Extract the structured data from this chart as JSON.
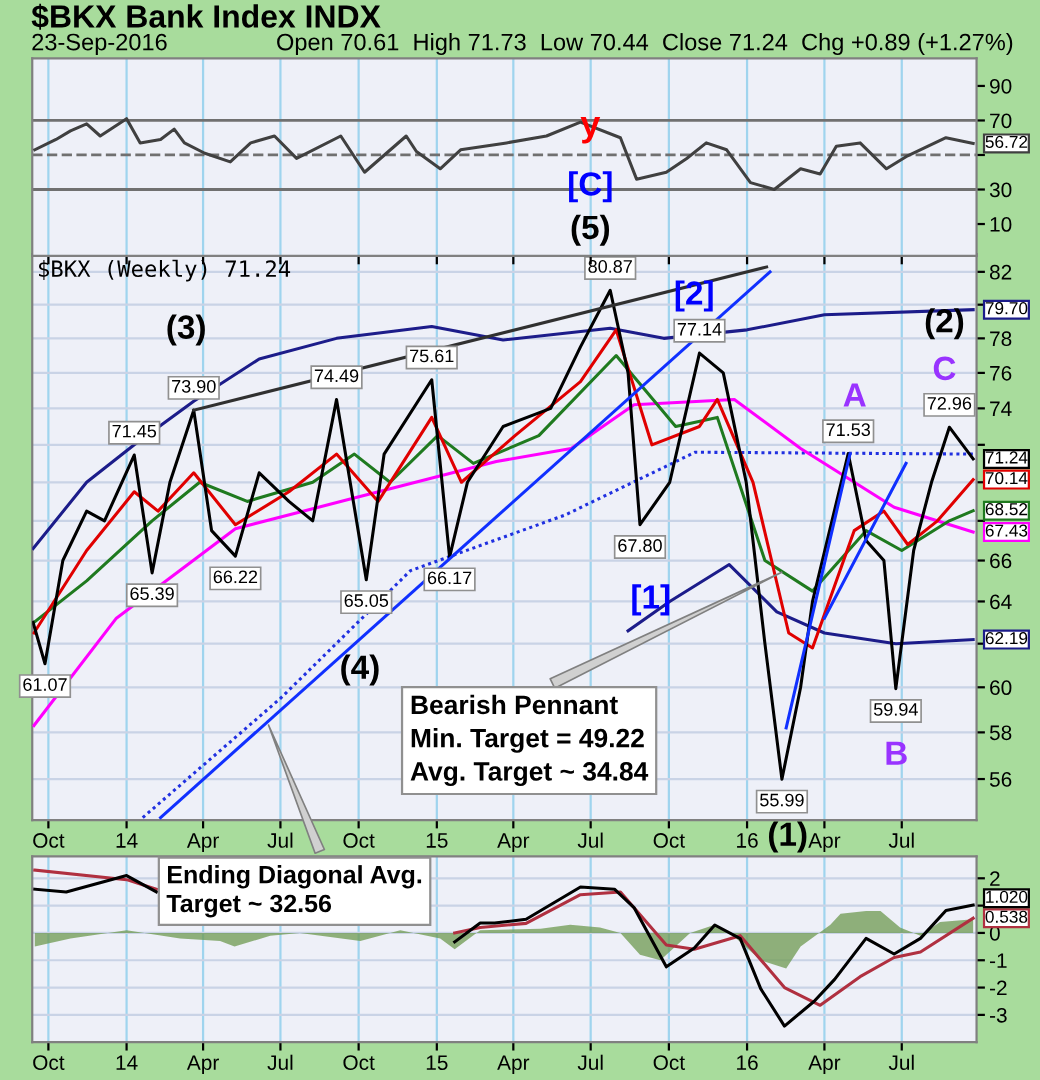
{
  "chart_data": [
    {
      "type": "line",
      "title": "$BKX Bank Index INDX",
      "subtitle": "23-Sep-2016",
      "xlim": [
        "2013-09-12",
        "2016-09-27"
      ],
      "ylim": [
        -8.5,
        106
      ],
      "xticks": [
        {
          "value": "2013-10-01",
          "label": null
        },
        {
          "value": "2014-01-01",
          "label": null
        },
        {
          "value": "2014-04-01",
          "label": null
        },
        {
          "value": "2014-07-01",
          "label": null
        },
        {
          "value": "2014-10-01",
          "label": null
        },
        {
          "value": "2015-01-01",
          "label": null
        },
        {
          "value": "2015-04-01",
          "label": null
        },
        {
          "value": "2015-07-01",
          "label": null
        },
        {
          "value": "2015-10-01",
          "label": null
        },
        {
          "value": "2016-01-01",
          "label": null
        },
        {
          "value": "2016-04-01",
          "label": null
        },
        {
          "value": "2016-07-01",
          "label": null
        }
      ],
      "yticks": [
        10,
        30,
        {
          "value": 50,
          "label": null
        },
        70,
        90
      ],
      "tick_labels": "y",
      "grid": "x",
      "ref_lines": [
        {
          "axis": "y",
          "value": 70,
          "color": "#707070"
        },
        {
          "axis": "y",
          "value": 30,
          "color": "#707070"
        },
        {
          "axis": "y",
          "value": 50,
          "color": "#707070",
          "line_style": "dashed"
        }
      ],
      "series": [
        {
          "color": "#404040",
          "x": [
            "2013-09-15",
            "2013-10-10",
            "2013-10-27",
            "2013-11-15",
            "2013-12-01",
            "2014-01-01",
            "2014-01-17",
            "2014-02-10",
            "2014-02-26",
            "2014-03-10",
            "2014-04-03",
            "2014-05-03",
            "2014-05-27",
            "2014-06-24",
            "2014-07-20",
            "2014-09-10",
            "2014-10-08",
            "2014-11-26",
            "2014-12-08",
            "2015-01-05",
            "2015-01-29",
            "2015-03-24",
            "2015-05-10",
            "2015-06-19",
            "2015-08-05",
            "2015-08-24",
            "2015-09-28",
            "2015-10-22",
            "2015-11-14",
            "2015-12-08",
            "2016-01-05",
            "2016-02-02",
            "2016-03-04",
            "2016-03-27",
            "2016-04-15",
            "2016-05-13",
            "2016-06-13",
            "2016-07-06",
            "2016-08-22",
            "2016-09-23"
          ],
          "values": [
            53,
            59,
            64,
            68,
            61,
            71,
            57,
            59,
            65,
            57,
            51,
            46,
            57,
            61,
            48,
            61,
            40,
            61,
            52,
            42,
            53,
            57,
            61,
            69,
            60,
            36,
            40,
            48,
            57,
            53,
            34,
            30,
            42,
            39,
            55,
            57,
            42,
            49,
            60,
            56.72
          ],
          "value_labels": [
            null,
            null,
            null,
            null,
            null,
            null,
            null,
            null,
            null,
            null,
            null,
            null,
            null,
            null,
            null,
            null,
            null,
            null,
            null,
            null,
            null,
            null,
            null,
            null,
            null,
            null,
            null,
            null,
            null,
            null,
            null,
            null,
            null,
            null,
            null,
            null,
            null,
            null,
            null,
            "56.72"
          ]
        }
      ],
      "annotations": [
        "Open 70.61  High 71.73  Low 70.44  Close 71.24  Chg +0.89 (+1.27%)",
        "y",
        "[C]",
        "(5)"
      ]
    },
    {
      "type": "line",
      "title": "$BKX (Weekly) 71.24",
      "log": "y",
      "xlim": [
        "2013-09-12",
        "2016-09-27"
      ],
      "ylim": [
        54.3,
        83.1
      ],
      "xticks": [
        {
          "value": "2013-10-01",
          "label": "Oct"
        },
        {
          "value": "2014-01-01",
          "label": "14"
        },
        {
          "value": "2014-04-01",
          "label": "Apr"
        },
        {
          "value": "2014-07-01",
          "label": "Jul"
        },
        {
          "value": "2014-10-01",
          "label": "Oct"
        },
        {
          "value": "2015-01-01",
          "label": "15"
        },
        {
          "value": "2015-04-01",
          "label": "Apr"
        },
        {
          "value": "2015-07-01",
          "label": "Jul"
        },
        {
          "value": "2015-10-01",
          "label": "Oct"
        },
        {
          "value": "2016-01-01",
          "label": "16"
        },
        {
          "value": "2016-04-01",
          "label": "Apr"
        },
        {
          "value": "2016-07-01",
          "label": "Jul"
        }
      ],
      "yticks": [
        56,
        58,
        60,
        {
          "value": 62,
          "label": null
        },
        64,
        66,
        {
          "value": 68,
          "label": null
        },
        {
          "value": 70,
          "label": null
        },
        {
          "value": 72,
          "label": null
        },
        74,
        76,
        78,
        {
          "value": 80,
          "label": null
        },
        82
      ],
      "grid": true,
      "series": [
        {
          "color": "#1c1c8a",
          "x": [
            "2013-09-13",
            "2013-11-15",
            "2014-01-10",
            "2014-03-21",
            "2014-06-06",
            "2014-09-05",
            "2014-12-26",
            "2015-03-20",
            "2015-07-24",
            "2015-09-25",
            "2016-01-01",
            "2016-04-01",
            "2016-09-23"
          ],
          "values": [
            66.6,
            70.0,
            72.0,
            74.4,
            76.8,
            78.0,
            78.7,
            77.9,
            78.6,
            78.0,
            78.5,
            79.4,
            79.7
          ],
          "value_labels": [
            null,
            null,
            null,
            null,
            null,
            null,
            null,
            null,
            null,
            null,
            null,
            null,
            "79.70"
          ]
        },
        {
          "color": "#1c1c8a",
          "x": [
            "2015-08-14",
            "2015-10-02",
            "2015-12-11",
            "2016-02-05",
            "2016-04-01",
            "2016-06-24",
            "2016-09-23"
          ],
          "values": [
            62.6,
            64.0,
            65.8,
            63.5,
            62.5,
            62.0,
            62.19
          ],
          "value_labels": [
            null,
            null,
            null,
            null,
            null,
            null,
            "62.19"
          ]
        },
        {
          "color": "#2030e0",
          "line_style": "dotted",
          "x": [
            "2014-01-20",
            "2014-07-01",
            "2014-12-01",
            "2015-06-01",
            "2015-11-01",
            "2016-09-23"
          ],
          "values": [
            54.4,
            59.5,
            65.5,
            68.3,
            71.6,
            71.5
          ]
        },
        {
          "color": "#ff00ff",
          "x": [
            "2013-09-14",
            "2013-12-20",
            "2014-05-09",
            "2014-09-28",
            "2015-03-12",
            "2015-06-08",
            "2015-08-21",
            "2015-12-17",
            "2016-03-04",
            "2016-06-22",
            "2016-09-23"
          ],
          "values": [
            58.3,
            63.2,
            67.6,
            69.2,
            71.1,
            71.8,
            74.2,
            74.5,
            71.8,
            68.7,
            67.43
          ],
          "value_labels": [
            null,
            null,
            null,
            null,
            null,
            null,
            null,
            null,
            null,
            null,
            "67.43"
          ]
        },
        {
          "color": "#1f7a1f",
          "x": [
            "2013-09-14",
            "2013-11-15",
            "2014-01-31",
            "2014-03-28",
            "2014-05-23",
            "2014-08-08",
            "2014-09-26",
            "2014-11-07",
            "2015-01-02",
            "2015-02-13",
            "2015-05-01",
            "2015-07-31",
            "2015-10-09",
            "2015-11-27",
            "2016-01-22",
            "2016-03-18",
            "2016-05-20",
            "2016-07-01",
            "2016-08-26",
            "2016-09-23"
          ],
          "values": [
            63.0,
            65.0,
            68.0,
            70.0,
            69.0,
            70.0,
            71.5,
            70.0,
            72.5,
            71.0,
            72.5,
            77.0,
            73.0,
            73.5,
            66.0,
            64.5,
            67.5,
            66.5,
            68.0,
            68.52
          ],
          "value_labels": [
            null,
            null,
            null,
            null,
            null,
            null,
            null,
            null,
            null,
            null,
            null,
            null,
            null,
            null,
            null,
            null,
            null,
            null,
            null,
            "68.52"
          ]
        },
        {
          "color": "#e00000",
          "x": [
            "2013-09-14",
            "2013-11-15",
            "2014-01-10",
            "2014-02-07",
            "2014-03-21",
            "2014-05-09",
            "2014-07-11",
            "2014-09-05",
            "2014-10-24",
            "2014-12-26",
            "2015-01-30",
            "2015-04-03",
            "2015-06-19",
            "2015-07-31",
            "2015-09-11",
            "2015-11-06",
            "2015-11-27",
            "2016-01-08",
            "2016-02-19",
            "2016-03-18",
            "2016-05-06",
            "2016-06-10",
            "2016-07-08",
            "2016-08-12",
            "2016-09-23"
          ],
          "values": [
            62.5,
            66.5,
            69.5,
            68.5,
            70.5,
            67.8,
            69.5,
            71.5,
            69.0,
            73.5,
            70.0,
            72.5,
            75.5,
            78.5,
            72.0,
            73.0,
            74.5,
            70.0,
            62.5,
            61.8,
            67.5,
            68.5,
            66.8,
            68.0,
            70.14
          ],
          "value_labels": [
            null,
            null,
            null,
            null,
            null,
            null,
            null,
            null,
            null,
            null,
            null,
            null,
            null,
            null,
            null,
            null,
            null,
            null,
            null,
            null,
            null,
            null,
            null,
            null,
            "70.14"
          ]
        },
        {
          "color": "#000000",
          "x": [
            "2013-09-13",
            "2013-09-27",
            "2013-10-18",
            "2013-11-15",
            "2013-12-06",
            "2014-01-10",
            "2014-01-31",
            "2014-02-21",
            "2014-03-21",
            "2014-04-11",
            "2014-05-09",
            "2014-06-06",
            "2014-07-11",
            "2014-08-08",
            "2014-09-05",
            "2014-10-10",
            "2014-10-31",
            "2014-12-26",
            "2015-01-16",
            "2015-02-06",
            "2015-03-20",
            "2015-05-15",
            "2015-06-19",
            "2015-07-24",
            "2015-08-14",
            "2015-08-28",
            "2015-10-02",
            "2015-11-06",
            "2015-12-04",
            "2015-12-31",
            "2016-01-22",
            "2016-02-11",
            "2016-03-04",
            "2016-03-18",
            "2016-04-29",
            "2016-05-20",
            "2016-06-10",
            "2016-06-24",
            "2016-07-15",
            "2016-08-05",
            "2016-08-26",
            "2016-09-23"
          ],
          "values": [
            63.0,
            61.07,
            66.0,
            68.5,
            68.0,
            71.45,
            65.39,
            70.0,
            73.9,
            67.5,
            66.22,
            70.5,
            69.0,
            68.0,
            74.49,
            65.05,
            71.5,
            75.61,
            66.17,
            70.0,
            73.0,
            74.0,
            77.5,
            80.87,
            76.0,
            67.8,
            70.0,
            77.14,
            76.0,
            70.0,
            62.0,
            55.99,
            60.0,
            64.0,
            71.53,
            67.0,
            66.0,
            59.94,
            66.5,
            70.0,
            72.96,
            71.24
          ],
          "value_labels": [
            null,
            null,
            null,
            null,
            null,
            null,
            null,
            null,
            null,
            null,
            null,
            null,
            null,
            null,
            null,
            null,
            null,
            null,
            null,
            null,
            null,
            null,
            null,
            null,
            null,
            null,
            null,
            null,
            null,
            null,
            null,
            null,
            null,
            null,
            null,
            null,
            null,
            null,
            null,
            null,
            null,
            "71.24"
          ]
        },
        {
          "color": "#303030",
          "x": [
            "2014-03-21",
            "2016-01-24"
          ],
          "values": [
            73.9,
            82.3
          ]
        },
        {
          "color": "#1030ff",
          "x": [
            "2014-02-10",
            "2016-01-28"
          ],
          "values": [
            54.4,
            82.0
          ]
        },
        {
          "color": "#1030ff",
          "x": [
            "2016-02-16",
            "2016-05-01"
          ],
          "values": [
            58.2,
            71.5
          ]
        },
        {
          "color": "#1030ff",
          "x": [
            "2016-04-01",
            "2016-07-06"
          ],
          "values": [
            63.2,
            71.0
          ]
        }
      ],
      "annotations": [
        {
          "text": "61.07",
          "x": "2013-09-27",
          "y": 61.07
        },
        {
          "text": "71.45",
          "x": "2014-01-10",
          "y": 71.45
        },
        {
          "text": "65.39",
          "x": "2014-01-31",
          "y": 65.39
        },
        {
          "text": "73.90",
          "x": "2014-03-21",
          "y": 73.9
        },
        {
          "text": "66.22",
          "x": "2014-05-09",
          "y": 66.22
        },
        {
          "text": "74.49",
          "x": "2014-09-05",
          "y": 74.49
        },
        {
          "text": "65.05",
          "x": "2014-10-10",
          "y": 65.05
        },
        {
          "text": "75.61",
          "x": "2014-12-26",
          "y": 75.61
        },
        {
          "text": "66.17",
          "x": "2015-01-16",
          "y": 66.17
        },
        {
          "text": "80.87",
          "x": "2015-07-24",
          "y": 80.87
        },
        {
          "text": "67.80",
          "x": "2015-08-28",
          "y": 67.8
        },
        {
          "text": "77.14",
          "x": "2015-11-06",
          "y": 77.14
        },
        {
          "text": "55.99",
          "x": "2016-02-11",
          "y": 55.99
        },
        {
          "text": "71.53",
          "x": "2016-04-29",
          "y": 71.53
        },
        {
          "text": "59.94",
          "x": "2016-06-24",
          "y": 59.94
        },
        {
          "text": "72.96",
          "x": "2016-08-26",
          "y": 72.96
        },
        "(3)",
        "(4)",
        "[2]",
        "[1]",
        "(2)",
        "A",
        "B",
        "C",
        "(1)",
        "Bearish Pennant\nMin. Target = 49.22\nAvg. Target ~ 34.84",
        "Ending Diagonal Avg.\nTarget ~ 32.56"
      ]
    },
    {
      "type": "line",
      "xlim": [
        "2013-09-12",
        "2016-09-27"
      ],
      "ylim": [
        -4,
        2.8
      ],
      "xticks": [
        {
          "value": "2013-10-01",
          "label": "Oct"
        },
        {
          "value": "2014-01-01",
          "label": "14"
        },
        {
          "value": "2014-04-01",
          "label": "Apr"
        },
        {
          "value": "2014-07-01",
          "label": "Jul"
        },
        {
          "value": "2014-10-01",
          "label": "Oct"
        },
        {
          "value": "2015-01-01",
          "label": "15"
        },
        {
          "value": "2015-04-01",
          "label": "Apr"
        },
        {
          "value": "2015-07-01",
          "label": "Jul"
        },
        {
          "value": "2015-10-01",
          "label": "Oct"
        },
        {
          "value": "2016-01-01",
          "label": "16"
        },
        {
          "value": "2016-04-01",
          "label": "Apr"
        },
        {
          "value": "2016-07-01",
          "label": "Jul"
        }
      ],
      "yticks": [
        -3,
        -2,
        -1,
        0,
        {
          "value": 1,
          "label": null
        },
        2
      ],
      "grid": true,
      "series": [
        {
          "type": "area",
          "color": "#6e9a50",
          "x": [
            "2013-09-15",
            "2013-10-27",
            "2014-01-01",
            "2014-03-05",
            "2014-04-21",
            "2014-05-08",
            "2014-06-19",
            "2014-07-24",
            "2014-10-03",
            "2014-11-19",
            "2015-01-05",
            "2015-01-22",
            "2015-02-21",
            "2015-05-03",
            "2015-06-07",
            "2015-07-12",
            "2015-08-05",
            "2015-08-28",
            "2015-09-21",
            "2015-10-26",
            "2015-11-24",
            "2015-12-12",
            "2016-01-17",
            "2016-02-16",
            "2016-03-04",
            "2016-04-08",
            "2016-04-20",
            "2016-05-20",
            "2016-06-06",
            "2016-06-29",
            "2016-07-23",
            "2016-08-15",
            "2016-09-23"
          ],
          "values": [
            -0.5,
            -0.2,
            0.1,
            -0.2,
            -0.3,
            -0.5,
            -0.1,
            0.0,
            -0.3,
            0.1,
            -0.2,
            -0.6,
            0.1,
            0.15,
            0.3,
            0.2,
            0.0,
            -0.8,
            -1.0,
            0.0,
            0.3,
            0.0,
            -1.0,
            -1.3,
            -0.5,
            0.3,
            0.7,
            0.8,
            0.8,
            0.2,
            -0.1,
            0.4,
            0.5
          ]
        },
        {
          "color": "#b03040",
          "x": [
            "2013-09-15",
            "2014-01-01",
            "2014-02-05",
            "2014-08-01",
            "2015-01-22",
            "2015-02-21",
            "2015-04-16",
            "2015-06-19",
            "2015-08-05",
            "2015-09-28",
            "2015-10-31",
            "2015-12-24",
            "2016-02-14",
            "2016-03-27",
            "2016-05-13",
            "2016-06-22",
            "2016-07-23",
            "2016-09-23"
          ],
          "values": [
            2.3,
            1.95,
            1.6,
            null,
            0.0,
            0.2,
            0.35,
            1.4,
            1.5,
            -0.44,
            -0.6,
            -0.1,
            -2.0,
            -2.65,
            -1.6,
            -0.9,
            -0.7,
            0.538
          ],
          "value_labels": [
            null,
            null,
            null,
            null,
            null,
            null,
            null,
            null,
            null,
            null,
            null,
            null,
            null,
            null,
            null,
            null,
            null,
            "0.538"
          ]
        },
        {
          "color": "#000000",
          "x": [
            "2013-09-15",
            "2013-10-22",
            "2014-01-01",
            "2014-02-05",
            "2014-08-01",
            "2015-01-22",
            "2015-02-21",
            "2015-03-10",
            "2015-04-16",
            "2015-06-19",
            "2015-07-29",
            "2015-08-21",
            "2015-09-28",
            "2015-10-31",
            "2015-11-24",
            "2015-12-24",
            "2016-01-17",
            "2016-02-14",
            "2016-03-20",
            "2016-04-13",
            "2016-05-20",
            "2016-06-22",
            "2016-07-23",
            "2016-08-22",
            "2016-09-23"
          ],
          "values": [
            1.6,
            1.5,
            2.1,
            1.5,
            null,
            -0.33,
            0.36,
            0.36,
            0.5,
            1.68,
            1.6,
            0.93,
            -1.24,
            -0.55,
            0.29,
            -0.21,
            -2.04,
            -3.41,
            -2.5,
            -1.7,
            -0.2,
            -0.77,
            -0.2,
            0.82,
            1.02
          ],
          "value_labels": [
            null,
            null,
            null,
            null,
            null,
            null,
            null,
            null,
            null,
            null,
            null,
            null,
            null,
            null,
            null,
            null,
            null,
            null,
            null,
            null,
            null,
            null,
            null,
            null,
            "1.020"
          ]
        }
      ]
    }
  ]
}
